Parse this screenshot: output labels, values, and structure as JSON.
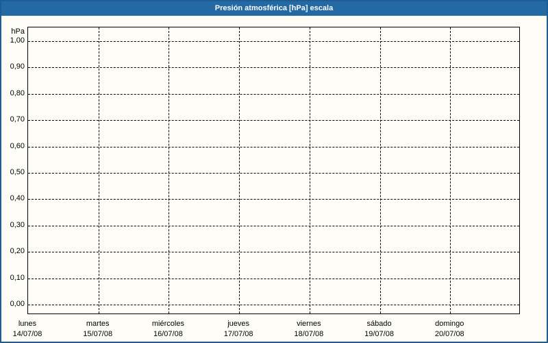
{
  "window": {
    "title_bar": {
      "label": "Presión atmosférica [hPa] escala"
    },
    "colors": {
      "title_bar_bg": "#2369a4",
      "title_bar_text": "#ffffff",
      "window_border": "#1e5c91",
      "background": "#fdfdf6",
      "grid_line": "#000000",
      "axis_text": "#000000"
    }
  },
  "chart_data": {
    "type": "line",
    "title": "Presión atmosférica [hPa] escala",
    "ylabel": "hPa",
    "xlabel": "",
    "ylim": [
      0.0,
      1.0
    ],
    "y_tick_step": 0.1,
    "y_tick_labels": [
      "1,00",
      "0,90",
      "0,80",
      "0,70",
      "0,60",
      "0,50",
      "0,40",
      "0,30",
      "0,20",
      "0,10",
      "0,00"
    ],
    "x_tick_labels": [
      {
        "day": "lunes",
        "date": "14/07/08"
      },
      {
        "day": "martes",
        "date": "15/07/08"
      },
      {
        "day": "miércoles",
        "date": "16/07/08"
      },
      {
        "day": "jueves",
        "date": "17/07/08"
      },
      {
        "day": "viernes",
        "date": "18/07/08"
      },
      {
        "day": "sábado",
        "date": "19/07/08"
      },
      {
        "day": "domingo",
        "date": "20/07/08"
      }
    ],
    "series": [],
    "grid": {
      "style": "dashed",
      "horizontal": true,
      "vertical": true
    },
    "legend": "none"
  }
}
